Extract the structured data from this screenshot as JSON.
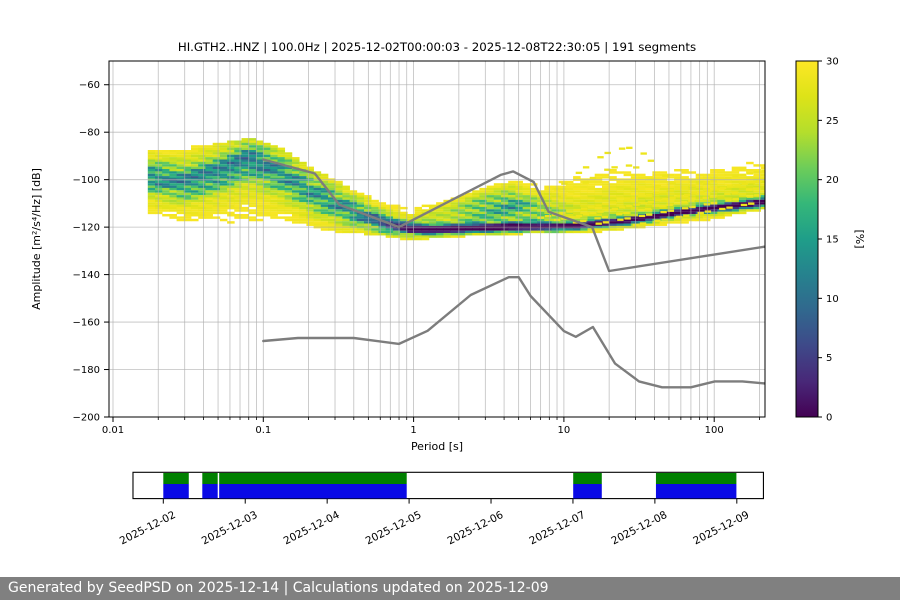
{
  "status_bar": {
    "text": "Generated by SeedPSD on 2025-12-14 | Calculations updated on 2025-12-09"
  },
  "chart_data": {
    "type": "heatmap",
    "title": "HI.GTH2..HNZ | 100.0Hz | 2025-12-02T00:00:03 - 2025-12-08T22:30:05 | 191 segments",
    "xlabel": "Period [s]",
    "ylabel": "Amplitude [m²/s⁴/Hz] [dB]",
    "x_scale": "log",
    "xlim": [
      0.0095,
      218
    ],
    "ylim": [
      -200,
      -50
    ],
    "x_ticks": [
      0.01,
      0.1,
      1,
      10,
      100
    ],
    "x_tick_labels": [
      "0.01",
      "0.1",
      "1",
      "10",
      "100"
    ],
    "y_ticks": [
      -60,
      -80,
      -100,
      -120,
      -140,
      -160,
      -180,
      -200
    ],
    "grid": true,
    "grid_color": "#b0b0b0",
    "colorbar": {
      "label": "[%]",
      "min": 0,
      "max": 30,
      "ticks": [
        0,
        5,
        10,
        15,
        20,
        25,
        30
      ],
      "colormap": "viridis_r",
      "viridis_stops": [
        "#440154",
        "#482878",
        "#3e4989",
        "#31688e",
        "#26828e",
        "#1f9e89",
        "#35b779",
        "#6dcd59",
        "#b4de2c",
        "#dde318",
        "#fde725"
      ]
    },
    "noise_models": {
      "color": "#7d7d7d",
      "nhnm": [
        [
          0.1,
          -91.5
        ],
        [
          0.22,
          -97.4
        ],
        [
          0.32,
          -110.5
        ],
        [
          0.8,
          -120.0
        ],
        [
          3.8,
          -98.0
        ],
        [
          4.6,
          -96.5
        ],
        [
          6.3,
          -101.0
        ],
        [
          7.9,
          -113.5
        ],
        [
          15.4,
          -120.0
        ],
        [
          20.0,
          -138.5
        ],
        [
          218,
          -128.2
        ]
      ],
      "nlnm": [
        [
          0.1,
          -168.0
        ],
        [
          0.17,
          -166.7
        ],
        [
          0.4,
          -166.7
        ],
        [
          0.8,
          -169.2
        ],
        [
          1.24,
          -163.7
        ],
        [
          2.4,
          -148.6
        ],
        [
          4.3,
          -141.1
        ],
        [
          5.0,
          -141.1
        ],
        [
          6.0,
          -149.0
        ],
        [
          10.0,
          -163.8
        ],
        [
          12.0,
          -166.2
        ],
        [
          15.6,
          -162.1
        ],
        [
          21.9,
          -177.5
        ],
        [
          31.6,
          -185.0
        ],
        [
          45.0,
          -187.5
        ],
        [
          70.0,
          -187.5
        ],
        [
          101.0,
          -185.0
        ],
        [
          154.0,
          -185.0
        ],
        [
          218.0,
          -185.9
        ]
      ]
    },
    "ppsd_profile": [
      {
        "p": 0.018,
        "top": -88,
        "bot": -116,
        "mode": -99,
        "peak": 15,
        "core": 5.0,
        "halo": 4,
        "samp": 0,
        "sctr": -110,
        "ssig": 3
      },
      {
        "p": 0.03,
        "top": -87,
        "bot": -119,
        "mode": -101,
        "peak": 16,
        "core": 5.2,
        "halo": 4,
        "samp": 0,
        "sctr": -110,
        "ssig": 3
      },
      {
        "p": 0.05,
        "top": -85,
        "bot": -120,
        "mode": -97,
        "peak": 16,
        "core": 5.5,
        "halo": 4,
        "samp": 0,
        "sctr": -110,
        "ssig": 3
      },
      {
        "p": 0.08,
        "top": -83,
        "bot": -120,
        "mode": -91,
        "peak": 17,
        "core": 6.0,
        "halo": 4,
        "samp": 0,
        "sctr": -110,
        "ssig": 3
      },
      {
        "p": 0.13,
        "top": -87,
        "bot": -120,
        "mode": -97,
        "peak": 15,
        "core": 6.0,
        "halo": 4,
        "samp": 0,
        "sctr": -110,
        "ssig": 3
      },
      {
        "p": 0.22,
        "top": -96,
        "bot": -121,
        "mode": -106,
        "peak": 14,
        "core": 5.5,
        "halo": 4,
        "samp": 0,
        "sctr": -112,
        "ssig": 3
      },
      {
        "p": 0.38,
        "top": -104,
        "bot": -122,
        "mode": -113,
        "peak": 15,
        "core": 4.5,
        "halo": 4,
        "samp": 0,
        "sctr": -114,
        "ssig": 3
      },
      {
        "p": 0.6,
        "top": -110,
        "bot": -123,
        "mode": -118,
        "peak": 19,
        "core": 3.0,
        "halo": 5,
        "samp": 0,
        "sctr": -116,
        "ssig": 3
      },
      {
        "p": 0.95,
        "top": -112,
        "bot": -125,
        "mode": -121,
        "peak": 26,
        "core": 1.8,
        "halo": 6,
        "samp": 0,
        "sctr": -116,
        "ssig": 3
      },
      {
        "p": 1.7,
        "top": -109,
        "bot": -124,
        "mode": -121,
        "peak": 28,
        "core": 1.5,
        "halo": 6,
        "samp": 4,
        "sctr": -114,
        "ssig": 3.2
      },
      {
        "p": 2.8,
        "top": -104,
        "bot": -123,
        "mode": -120.5,
        "peak": 28,
        "core": 1.4,
        "halo": 7,
        "samp": 11,
        "sctr": -111.5,
        "ssig": 3.6
      },
      {
        "p": 4.5,
        "top": -101,
        "bot": -123,
        "mode": -120,
        "peak": 28,
        "core": 1.4,
        "halo": 8,
        "samp": 13,
        "sctr": -110,
        "ssig": 4.0
      },
      {
        "p": 7,
        "top": -102,
        "bot": -122,
        "mode": -120,
        "peak": 27,
        "core": 1.4,
        "halo": 6,
        "samp": 7,
        "sctr": -112,
        "ssig": 3.2
      },
      {
        "p": 12,
        "top": -98,
        "bot": -122,
        "mode": -119.5,
        "peak": 27,
        "core": 1.3,
        "halo": 5.5,
        "samp": 0,
        "sctr": -112,
        "ssig": 3
      },
      {
        "p": 25,
        "top": -94,
        "bot": -121,
        "mode": -117.5,
        "peak": 28,
        "core": 1.3,
        "halo": 5,
        "samp": 0,
        "sctr": -112,
        "ssig": 3
      },
      {
        "p": 50,
        "top": -95,
        "bot": -119,
        "mode": -114.5,
        "peak": 28,
        "core": 1.3,
        "halo": 5,
        "samp": 0,
        "sctr": -112,
        "ssig": 3
      },
      {
        "p": 100,
        "top": -94,
        "bot": -117,
        "mode": -112,
        "peak": 29,
        "core": 1.3,
        "halo": 5,
        "samp": 0,
        "sctr": -112,
        "ssig": 3
      },
      {
        "p": 215,
        "top": -92,
        "bot": -112,
        "mode": -109.5,
        "peak": 30,
        "core": 1.4,
        "halo": 5,
        "samp": 0,
        "sctr": -112,
        "ssig": 3
      }
    ],
    "extra_modes": [
      {
        "dash": true,
        "pts": [
          [
            9,
            -104
          ],
          [
            12,
            -98
          ],
          [
            16,
            -92
          ],
          [
            21,
            -87.5
          ],
          [
            27,
            -86.5
          ],
          [
            34,
            -89
          ],
          [
            42,
            -95
          ],
          [
            52,
            -101
          ],
          [
            62,
            -105
          ]
        ]
      },
      {
        "dash": true,
        "pts": [
          [
            10,
            -107
          ],
          [
            14,
            -101
          ],
          [
            19,
            -96
          ],
          [
            25,
            -93.5
          ],
          [
            31,
            -95
          ],
          [
            38,
            -100
          ],
          [
            46,
            -105
          ],
          [
            55,
            -109
          ]
        ]
      },
      {
        "dash": false,
        "pts": [
          [
            7,
            -116
          ],
          [
            218,
            -96
          ]
        ]
      },
      {
        "dash": false,
        "pts": [
          [
            9,
            -117
          ],
          [
            218,
            -100
          ]
        ]
      },
      {
        "dash": true,
        "pts": [
          [
            12,
            -118
          ],
          [
            218,
            -103
          ]
        ]
      },
      {
        "dash": true,
        "pts": [
          [
            17,
            -118.5
          ],
          [
            218,
            -106
          ]
        ]
      },
      {
        "dash": true,
        "pts": [
          [
            30,
            -119
          ],
          [
            218,
            -109
          ]
        ]
      }
    ]
  },
  "timeline": {
    "green": "#008000",
    "blue": "#0a0ae6",
    "range_days": [
      -0.37,
      7.325
    ],
    "ticks": [
      {
        "day": 0,
        "label": "2025-12-02"
      },
      {
        "day": 1,
        "label": "2025-12-03"
      },
      {
        "day": 2,
        "label": "2025-12-04"
      },
      {
        "day": 3,
        "label": "2025-12-05"
      },
      {
        "day": 4,
        "label": "2025-12-06"
      },
      {
        "day": 5,
        "label": "2025-12-07"
      },
      {
        "day": 6,
        "label": "2025-12-08"
      },
      {
        "day": 7,
        "label": "2025-12-09"
      }
    ],
    "segments": [
      {
        "start": 0.0,
        "end": 0.311
      },
      {
        "start": 0.476,
        "end": 0.664
      },
      {
        "start": 0.682,
        "end": 2.971
      },
      {
        "start": 5.003,
        "end": 5.352
      },
      {
        "start": 6.013,
        "end": 6.995
      }
    ]
  }
}
